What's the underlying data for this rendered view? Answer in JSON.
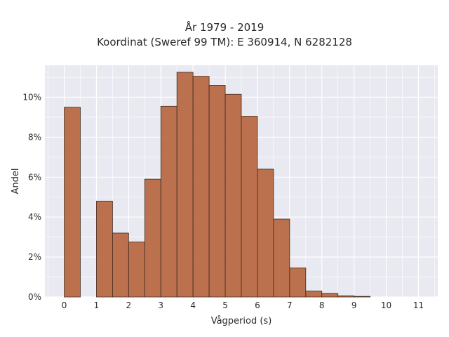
{
  "chart_data": {
    "type": "bar",
    "title_lines": [
      "År 1979 - 2019",
      "Koordinat (Sweref 99 TM): E 360914, N 6282128"
    ],
    "xlabel": "Vågperiod (s)",
    "ylabel": "Andel",
    "xlim": [
      -0.6,
      11.6
    ],
    "ylim": [
      0,
      11.6
    ],
    "grid": true,
    "bin_width": 0.5,
    "x_ticks": [
      0,
      1,
      2,
      3,
      4,
      5,
      6,
      7,
      8,
      9,
      10,
      11
    ],
    "y_ticks": [
      0,
      2,
      4,
      6,
      8,
      10
    ],
    "y_tick_labels": [
      "0%",
      "2%",
      "4%",
      "6%",
      "8%",
      "10%"
    ],
    "bins": [
      {
        "x_start": 0.0,
        "value": 9.5
      },
      {
        "x_start": 1.0,
        "value": 4.8
      },
      {
        "x_start": 1.5,
        "value": 3.2
      },
      {
        "x_start": 2.0,
        "value": 2.75
      },
      {
        "x_start": 2.5,
        "value": 5.9
      },
      {
        "x_start": 3.0,
        "value": 9.55
      },
      {
        "x_start": 3.5,
        "value": 11.25
      },
      {
        "x_start": 4.0,
        "value": 11.05
      },
      {
        "x_start": 4.5,
        "value": 10.6
      },
      {
        "x_start": 5.0,
        "value": 10.15
      },
      {
        "x_start": 5.5,
        "value": 9.05
      },
      {
        "x_start": 6.0,
        "value": 6.4
      },
      {
        "x_start": 6.5,
        "value": 3.9
      },
      {
        "x_start": 7.0,
        "value": 1.45
      },
      {
        "x_start": 7.5,
        "value": 0.3
      },
      {
        "x_start": 8.0,
        "value": 0.18
      },
      {
        "x_start": 8.5,
        "value": 0.06
      },
      {
        "x_start": 9.0,
        "value": 0.03
      }
    ],
    "colors": {
      "bar_fill": "#b86a45",
      "bar_stroke": "#3d2a20",
      "plot_bg": "#e9e9f1",
      "grid": "#ffffff"
    }
  }
}
